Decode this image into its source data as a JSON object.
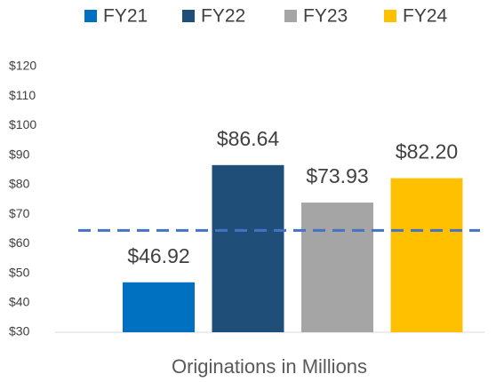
{
  "chart_data": {
    "type": "bar",
    "categories": [
      null
    ],
    "series": [
      {
        "name": "FY21",
        "color": "#0070c0",
        "values": [
          46.92
        ],
        "value_labels": [
          "$46.92"
        ]
      },
      {
        "name": "FY22",
        "color": "#1f4e79",
        "values": [
          86.64
        ],
        "value_labels": [
          "$86.64"
        ]
      },
      {
        "name": "FY23",
        "color": "#a5a5a5",
        "values": [
          73.93
        ],
        "value_labels": [
          "$73.93"
        ]
      },
      {
        "name": "FY24",
        "color": "#ffc000",
        "values": [
          82.2
        ],
        "value_labels": [
          "$82.20"
        ]
      }
    ],
    "x_label": "Originations in Millions",
    "ylim": [
      30,
      120
    ],
    "yticks": [
      {
        "value": 30,
        "label": "$30"
      },
      {
        "value": 40,
        "label": "$40"
      },
      {
        "value": 50,
        "label": "$50"
      },
      {
        "value": 60,
        "label": "$60"
      },
      {
        "value": 70,
        "label": "$70"
      },
      {
        "value": 80,
        "label": "$80"
      },
      {
        "value": 90,
        "label": "$90"
      },
      {
        "value": 100,
        "label": "$100"
      },
      {
        "value": 110,
        "label": "$110"
      },
      {
        "value": 120,
        "label": "$120"
      }
    ],
    "reference_line": {
      "value": 64.5,
      "color": "#4472c4"
    },
    "legend": "top",
    "grid": false
  }
}
